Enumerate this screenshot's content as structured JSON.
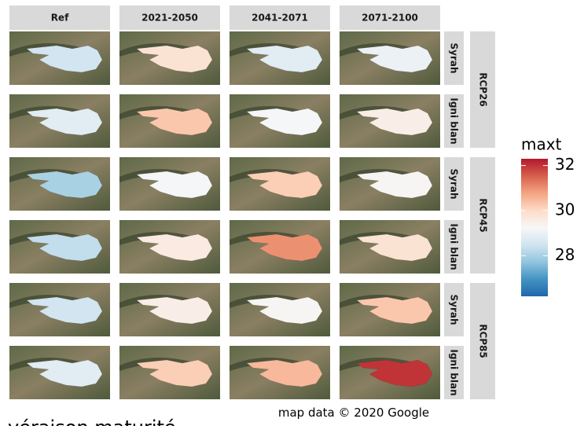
{
  "chart_data": {
    "type": "map",
    "columns": [
      "Ref",
      "2021-2050",
      "2041-2071",
      "2071-2100"
    ],
    "row_labels": [
      "Syrah",
      "Igni blan",
      "Syrah",
      "Igni blan",
      "Syrah",
      "Igni blan"
    ],
    "scenarios": [
      "RCP26",
      "RCP45",
      "RCP85"
    ],
    "values": [
      [
        28.5,
        29.8,
        28.8,
        29.0
      ],
      [
        28.8,
        30.3,
        29.2,
        29.5
      ],
      [
        28.0,
        29.2,
        30.2,
        29.3
      ],
      [
        28.3,
        29.6,
        31.0,
        29.8
      ],
      [
        28.5,
        29.5,
        29.3,
        30.3
      ],
      [
        28.8,
        30.2,
        30.5,
        32.0
      ]
    ],
    "legend": {
      "title": "maxt",
      "lim": [
        26.2,
        32.3
      ],
      "ticks": [
        28,
        30,
        32
      ]
    },
    "caption": "map data © 2020 Google",
    "footer": "véraison maturité"
  }
}
